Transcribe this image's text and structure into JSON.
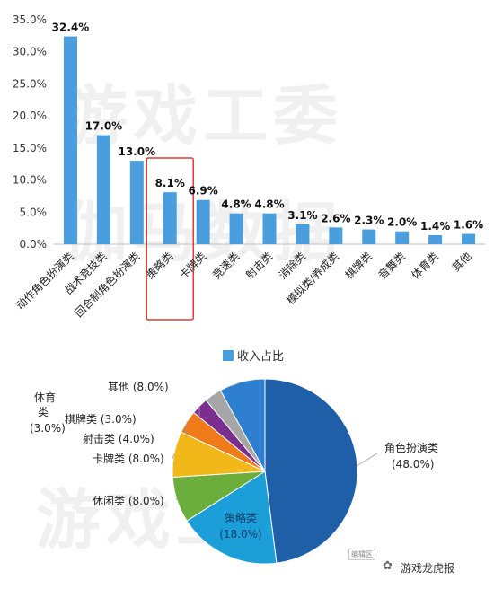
{
  "watermarks": [
    "游戏工委",
    "伽马数据",
    "游戏工委"
  ],
  "credit": {
    "text": "游戏龙虎报",
    "small": "编辑区"
  },
  "colors": {
    "bar": "#4a9ede",
    "highlight": "#e03c31"
  },
  "chart_data": [
    {
      "type": "bar",
      "categories": [
        "动作角色扮演类",
        "战术竞技类",
        "回合制角色扮演类",
        "策略类",
        "卡牌类",
        "竞速类",
        "射击类",
        "消除类",
        "模拟类/养成类",
        "棋牌类",
        "音舞类",
        "体育类",
        "其他"
      ],
      "values": [
        32.4,
        17.0,
        13.0,
        8.1,
        6.9,
        4.8,
        4.8,
        3.1,
        2.6,
        2.3,
        2.0,
        1.4,
        1.6
      ],
      "data_labels": [
        "32.4%",
        "17.0%",
        "13.0%",
        "8.1%",
        "6.9%",
        "4.8%",
        "4.8%",
        "3.1%",
        "2.6%",
        "2.3%",
        "2.0%",
        "1.4%",
        "1.6%"
      ],
      "yticks": [
        "0.0%",
        "5.0%",
        "10.0%",
        "15.0%",
        "20.0%",
        "25.0%",
        "30.0%",
        "35.0%"
      ],
      "ylim": [
        0,
        35
      ],
      "highlighted_category": "策略类",
      "legend": "收入占比",
      "legend_position": "bottom"
    },
    {
      "type": "pie",
      "slices": [
        {
          "label": "角色扮演类",
          "pct": "(48.0%)",
          "value": 48.0,
          "color": "#1f5fa7"
        },
        {
          "label": "策略类",
          "pct": "(18.0%)",
          "value": 18.0,
          "color": "#1c9fd8"
        },
        {
          "label": "休闲类",
          "pct": "(8.0%)",
          "value": 8.0,
          "color": "#6cae3b"
        },
        {
          "label": "卡牌类",
          "pct": "(8.0%)",
          "value": 8.0,
          "color": "#f2b719"
        },
        {
          "label": "射击类",
          "pct": "(4.0%)",
          "value": 4.0,
          "color": "#ef7a1a"
        },
        {
          "label": "棋牌类",
          "pct": "(3.0%)",
          "value": 3.0,
          "color": "#7a2e8e"
        },
        {
          "label": "体育类",
          "pct": "(3.0%)",
          "value": 3.0,
          "color": "#a6a6a6"
        },
        {
          "label": "其他",
          "pct": "(8.0%)",
          "value": 8.0,
          "color": "#2f7fd0"
        }
      ]
    }
  ]
}
